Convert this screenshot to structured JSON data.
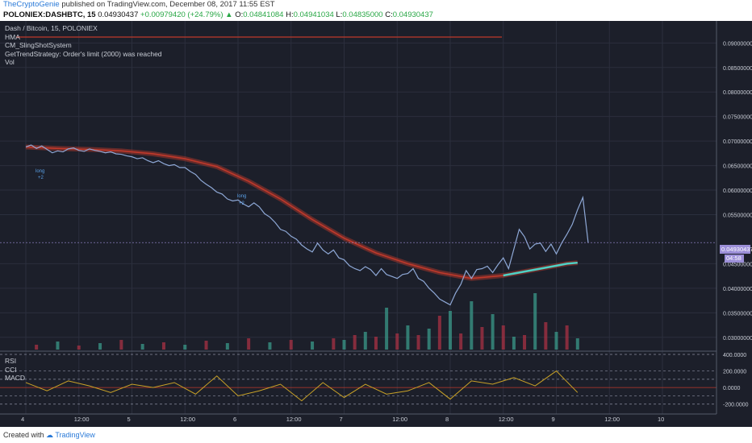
{
  "header": {
    "author": "TheCryptoGenie",
    "published": "published on TradingView.com, December 08, 2017 11:55 EST",
    "symbol": "POLONIEX:DASHBTC, 15",
    "price": "0.04930437",
    "change": "+0.00979420 (+24.79%)",
    "o_label": "O:",
    "o_val": "0.04841084",
    "h_label": "H:",
    "h_val": "0.04941034",
    "l_label": "L:",
    "l_val": "0.04835000",
    "c_label": "C:",
    "c_val": "0.04930437"
  },
  "legend": {
    "pair": "Dash / Bitcoin, 15, POLONIEX",
    "hma": "HMA",
    "slingshot": "CM_SlingShotSystem",
    "trend": "GetTrendStrategy: Order's limit (2000) was reached",
    "vol": "Vol"
  },
  "sub_legend": {
    "rsi": "RSI",
    "cci": "CCI",
    "macd": "MACD"
  },
  "markers": {
    "long": "long",
    "plus2": "+2"
  },
  "price_tag": "0.04930437",
  "time_tag": "04:58",
  "footer": {
    "created": "Created with",
    "brand": "TradingView"
  },
  "colors": {
    "bg": "#1c1f2a",
    "price": "#8ea8d6",
    "ma_red": "#c0392b",
    "ma_cyan": "#4fd1c5",
    "vol_up": "#3a9a8a",
    "vol_down": "#a83244",
    "osc": "#c9a227"
  },
  "chart_data": {
    "type": "line",
    "x_tick_labels": [
      "4",
      "12:00",
      "5",
      "12:00",
      "6",
      "12:00",
      "7",
      "12:00",
      "8",
      "12:00",
      "9",
      "12:00",
      "10"
    ],
    "price_axis": [
      "0.09000000",
      "0.08500000",
      "0.08000000",
      "0.07500000",
      "0.07000000",
      "0.06500000",
      "0.06000000",
      "0.05500000",
      "0.04500000",
      "0.04000000",
      "0.03500000",
      "0.03000000"
    ],
    "ylim": [
      0.0275,
      0.0935
    ],
    "price_series": {
      "x": [
        0,
        0.05,
        0.1,
        0.15,
        0.2,
        0.25,
        0.3,
        0.35,
        0.4,
        0.45,
        0.5,
        0.55,
        0.6,
        0.65,
        0.7,
        0.75,
        0.8,
        0.85,
        0.9,
        0.95,
        1.0,
        1.05,
        1.1,
        1.15,
        1.2,
        1.25,
        1.3,
        1.35,
        1.4,
        1.45,
        1.5,
        1.55,
        1.6,
        1.65,
        1.7,
        1.75,
        1.8,
        1.85,
        1.9,
        1.95,
        2.0,
        2.05,
        2.1,
        2.15,
        2.2,
        2.25,
        2.3,
        2.35,
        2.4,
        2.45,
        2.5,
        2.55,
        2.6,
        2.65,
        2.7,
        2.75,
        2.8,
        2.85,
        2.9,
        2.95,
        3.0,
        3.05,
        3.1,
        3.15,
        3.2,
        3.25,
        3.3,
        3.35,
        3.4,
        3.45,
        3.5,
        3.55,
        3.6,
        3.65,
        3.7,
        3.75,
        3.8,
        3.85,
        3.9,
        3.95,
        4.0,
        4.05,
        4.1,
        4.15,
        4.2,
        4.25,
        4.3,
        4.35,
        4.4,
        4.45,
        4.5,
        4.55,
        4.6,
        4.65,
        4.7,
        4.75,
        4.8,
        4.85,
        4.9,
        4.95,
        5.0,
        5.05,
        5.1,
        5.15,
        5.2,
        5.25,
        5.3
      ],
      "y": [
        0.0688,
        0.0692,
        0.0685,
        0.069,
        0.0683,
        0.0676,
        0.068,
        0.0678,
        0.0684,
        0.0686,
        0.0681,
        0.0679,
        0.0684,
        0.0681,
        0.0679,
        0.0676,
        0.0678,
        0.0674,
        0.0673,
        0.067,
        0.0668,
        0.0664,
        0.0666,
        0.066,
        0.0656,
        0.066,
        0.0654,
        0.065,
        0.0652,
        0.0646,
        0.0646,
        0.0638,
        0.0632,
        0.062,
        0.0612,
        0.0605,
        0.0596,
        0.0592,
        0.0582,
        0.0578,
        0.058,
        0.0572,
        0.0566,
        0.0574,
        0.0566,
        0.0552,
        0.0545,
        0.0534,
        0.052,
        0.0516,
        0.0506,
        0.05,
        0.0488,
        0.048,
        0.0474,
        0.0492,
        0.0478,
        0.047,
        0.0478,
        0.0462,
        0.0458,
        0.0446,
        0.044,
        0.0436,
        0.0444,
        0.0438,
        0.0426,
        0.044,
        0.0428,
        0.0424,
        0.042,
        0.0428,
        0.043,
        0.044,
        0.042,
        0.0414,
        0.04,
        0.039,
        0.0378,
        0.0372,
        0.0366,
        0.039,
        0.0408,
        0.0436,
        0.042,
        0.0438,
        0.044,
        0.0445,
        0.0432,
        0.0448,
        0.0462,
        0.044,
        0.048,
        0.052,
        0.0505,
        0.048,
        0.049,
        0.0492,
        0.0475,
        0.049,
        0.047,
        0.0492,
        0.051,
        0.053,
        0.056,
        0.0585,
        0.0493
      ]
    },
    "ma_series": {
      "x": [
        0,
        0.3,
        0.6,
        0.9,
        1.2,
        1.5,
        1.8,
        2.1,
        2.4,
        2.7,
        3.0,
        3.3,
        3.6,
        3.9,
        4.2,
        4.5,
        4.8,
        5.0,
        5.1,
        5.2
      ],
      "y": [
        0.0688,
        0.0685,
        0.0683,
        0.068,
        0.0674,
        0.0664,
        0.0648,
        0.0618,
        0.0582,
        0.054,
        0.0502,
        0.0472,
        0.045,
        0.0432,
        0.042,
        0.0426,
        0.0438,
        0.0446,
        0.045,
        0.0452
      ]
    },
    "hma_level": 0.0912,
    "volume": {
      "x": [
        0.1,
        0.3,
        0.5,
        0.7,
        0.9,
        1.1,
        1.3,
        1.5,
        1.7,
        1.9,
        2.1,
        2.3,
        2.5,
        2.7,
        2.9,
        3.0,
        3.1,
        3.2,
        3.3,
        3.4,
        3.5,
        3.6,
        3.7,
        3.8,
        3.9,
        4.0,
        4.1,
        4.2,
        4.3,
        4.4,
        4.5,
        4.6,
        4.7,
        4.8,
        4.9,
        5.0,
        5.1,
        5.2
      ],
      "values": [
        6,
        10,
        5,
        8,
        12,
        7,
        9,
        6,
        11,
        8,
        14,
        9,
        12,
        10,
        14,
        12,
        18,
        22,
        16,
        52,
        20,
        30,
        18,
        26,
        42,
        48,
        20,
        60,
        28,
        44,
        30,
        16,
        18,
        70,
        34,
        22,
        30,
        14
      ]
    },
    "oscillator": {
      "levels": [
        400,
        200,
        100,
        0,
        -100,
        -200
      ],
      "axis_labels": [
        "400.0000",
        "200.0000",
        "0.0000",
        "-200.0000"
      ],
      "x": [
        0,
        0.2,
        0.4,
        0.6,
        0.8,
        1.0,
        1.2,
        1.4,
        1.6,
        1.8,
        2.0,
        2.2,
        2.4,
        2.6,
        2.8,
        3.0,
        3.2,
        3.4,
        3.6,
        3.8,
        4.0,
        4.2,
        4.4,
        4.6,
        4.8,
        5.0,
        5.2
      ],
      "cci": [
        60,
        -40,
        80,
        20,
        -60,
        40,
        0,
        60,
        -80,
        140,
        -100,
        -40,
        40,
        -160,
        60,
        -120,
        40,
        -80,
        -40,
        60,
        -140,
        80,
        40,
        120,
        20,
        200,
        -60
      ]
    }
  }
}
